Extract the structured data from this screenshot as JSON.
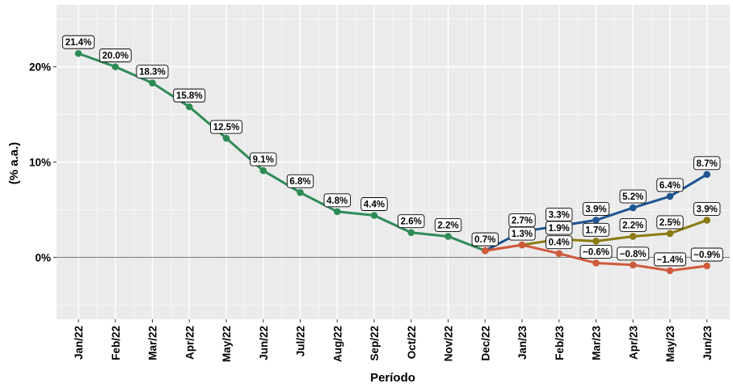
{
  "chart_data": {
    "type": "line",
    "xlabel": "Período",
    "ylabel": "(% a.a.)",
    "categories": [
      "Jan/22",
      "Feb/22",
      "Mar/22",
      "Apr/22",
      "May/22",
      "Jun/22",
      "Jul/22",
      "Aug/22",
      "Sep/22",
      "Oct/22",
      "Nov/22",
      "Dec/22",
      "Jan/23",
      "Feb/23",
      "Mar/23",
      "Apr/23",
      "May/23",
      "Jun/23"
    ],
    "y_ticks": [
      0,
      10,
      20
    ],
    "y_tick_labels": [
      "0%",
      "10%",
      "20%"
    ],
    "ylim": [
      -6.5,
      26.5
    ],
    "grid": true,
    "zero_line": true,
    "series": [
      {
        "color": "#2e8b57",
        "values": [
          21.4,
          20.0,
          18.3,
          15.8,
          12.5,
          9.1,
          6.8,
          4.8,
          4.4,
          2.6,
          2.2,
          0.7,
          null,
          null,
          null,
          null,
          null,
          null
        ],
        "labels": [
          "21.4%",
          "20.0%",
          "18.3%",
          "15.8%",
          "12.5%",
          "9.1%",
          "6.8%",
          "4.8%",
          "4.4%",
          "2.6%",
          "2.2%",
          "0.7%",
          "",
          "",
          "",
          "",
          "",
          ""
        ]
      },
      {
        "color": "#1f5591",
        "values": [
          null,
          null,
          null,
          null,
          null,
          null,
          null,
          null,
          null,
          null,
          null,
          0.7,
          2.7,
          3.3,
          3.9,
          5.2,
          6.4,
          8.7
        ],
        "labels": [
          "",
          "",
          "",
          "",
          "",
          "",
          "",
          "",
          "",
          "",
          "",
          "",
          "2.7%",
          "3.3%",
          "3.9%",
          "5.2%",
          "6.4%",
          "8.7%"
        ]
      },
      {
        "color": "#8b7a10",
        "values": [
          null,
          null,
          null,
          null,
          null,
          null,
          null,
          null,
          null,
          null,
          null,
          0.7,
          1.3,
          1.9,
          1.7,
          2.2,
          2.5,
          3.9
        ],
        "labels": [
          "",
          "",
          "",
          "",
          "",
          "",
          "",
          "",
          "",
          "",
          "",
          "",
          "1.3%",
          "1.9%",
          "1.7%",
          "2.2%",
          "2.5%",
          "3.9%"
        ]
      },
      {
        "color": "#d05a3c",
        "values": [
          null,
          null,
          null,
          null,
          null,
          null,
          null,
          null,
          null,
          null,
          null,
          0.7,
          1.3,
          0.4,
          -0.6,
          -0.8,
          -1.4,
          -0.9
        ],
        "labels": [
          "",
          "",
          "",
          "",
          "",
          "",
          "",
          "",
          "",
          "",
          "",
          "",
          "",
          "0.4%",
          "−0.6%",
          "−0.8%",
          "−1.4%",
          "−0.9%"
        ]
      }
    ]
  }
}
